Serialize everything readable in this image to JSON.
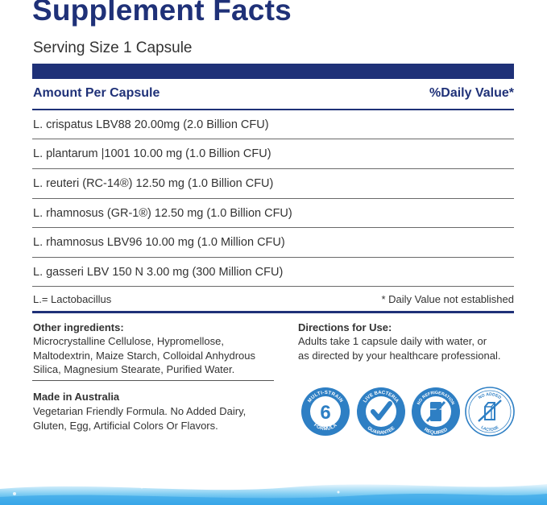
{
  "title": "Supplement Facts",
  "serving": "Serving Size 1 Capsule",
  "header": {
    "amount": "Amount Per Capsule",
    "dv": "%Daily Value*"
  },
  "rows": [
    "L. crispatus LBV88 20.00mg (2.0 Billion CFU)",
    "L. plantarum |1001 10.00 mg (1.0 Billion CFU)",
    "L. reuteri (RC-14®)  12.50 mg (1.0 Billion CFU)",
    "L. rhamnosus (GR-1®) 12.50 mg (1.0 Billion CFU)",
    "L. rhamnosus LBV96 10.00 mg (1.0 Million CFU)",
    "L. gasseri LBV 150 N 3.00 mg (300 Million CFU)"
  ],
  "footnote": {
    "abbrev": "L.= Lactobacillus",
    "dv_note": "* Daily Value not established"
  },
  "other_ingredients": {
    "heading": "Other ingredients:",
    "lines": [
      "Microcrystalline Cellulose, Hypromellose,",
      "Maltodextrin, Maize Starch, Colloidal Anhydrous",
      "Silica, Magnesium Stearate, Purified Water."
    ]
  },
  "directions": {
    "heading": "Directions for Use:",
    "lines": [
      "Adults take 1 capsule daily with water, or",
      "as directed by your healthcare professional."
    ]
  },
  "made_in": {
    "heading": "Made in Australia",
    "lines": [
      "Vegetarian Friendly Formula. No Added Dairy,",
      "Gluten, Egg, Artificial Colors Or Flavors."
    ]
  },
  "badges": {
    "multi_strain": {
      "top": "MULTI-STRAIN",
      "number": "6",
      "bottom": "FORMULA"
    },
    "live_bacteria": {
      "top": "LIVE BACTERIA",
      "bottom": "GUARANTEE"
    },
    "no_refrigeration": {
      "top": "NO REFRIGERATION",
      "bottom": "REQUIRED"
    },
    "no_lactose": {
      "top": "NO ADDED",
      "bottom": "LACTOSE"
    }
  },
  "colors": {
    "navy": "#1f3178",
    "badge_blue": "#2e7fc4",
    "wave_blue": "#3aa8e8"
  }
}
